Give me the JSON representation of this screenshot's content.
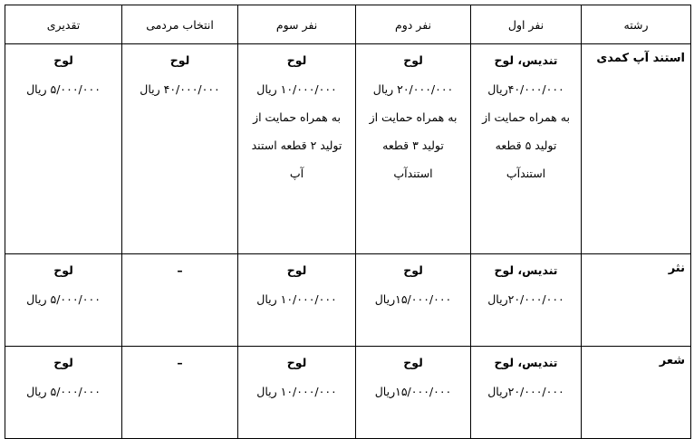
{
  "headers": [
    "رشته",
    "نفر اول",
    "نفر دوم",
    "نفر سوم",
    "انتخاب مردمی",
    "تقدیری"
  ],
  "rows": [
    {
      "field": "استند آپ کمدی",
      "cells": [
        [
          "تندیس، لوح",
          "۴۰/۰۰۰/۰۰۰ریال",
          "به همراه حمایت از",
          "تولید ۵ قطعه",
          "استندآپ"
        ],
        [
          "لوح",
          "۲۰/۰۰۰/۰۰۰ ریال",
          "به همراه حمایت از",
          "تولید ۳ قطعه",
          "استندآپ"
        ],
        [
          "لوح",
          "۱۰/۰۰۰/۰۰۰  ریال",
          "به همراه حمایت از",
          "تولید ۲ قطعه استند",
          "آپ"
        ],
        [
          "لوح",
          "۴۰/۰۰۰/۰۰۰ ریال"
        ],
        [
          "لوح",
          "۵/۰۰۰/۰۰۰ ریال"
        ]
      ]
    },
    {
      "field": "نثر",
      "cells": [
        [
          "تندیس، لوح",
          "۲۰/۰۰۰/۰۰۰ریال"
        ],
        [
          "لوح",
          "۱۵/۰۰۰/۰۰۰ریال"
        ],
        [
          "لوح",
          "۱۰/۰۰۰/۰۰۰ ریال"
        ],
        [
          "–"
        ],
        [
          "لوح",
          "۵/۰۰۰/۰۰۰ ریال"
        ]
      ]
    },
    {
      "field": "شعر",
      "cells": [
        [
          "تندیس، لوح",
          "۲۰/۰۰۰/۰۰۰ریال"
        ],
        [
          "لوح",
          "۱۵/۰۰۰/۰۰۰ریال"
        ],
        [
          "لوح",
          "۱۰/۰۰۰/۰۰۰ ریال"
        ],
        [
          "–"
        ],
        [
          "لوح",
          "۵/۰۰۰/۰۰۰ ریال"
        ]
      ]
    }
  ]
}
